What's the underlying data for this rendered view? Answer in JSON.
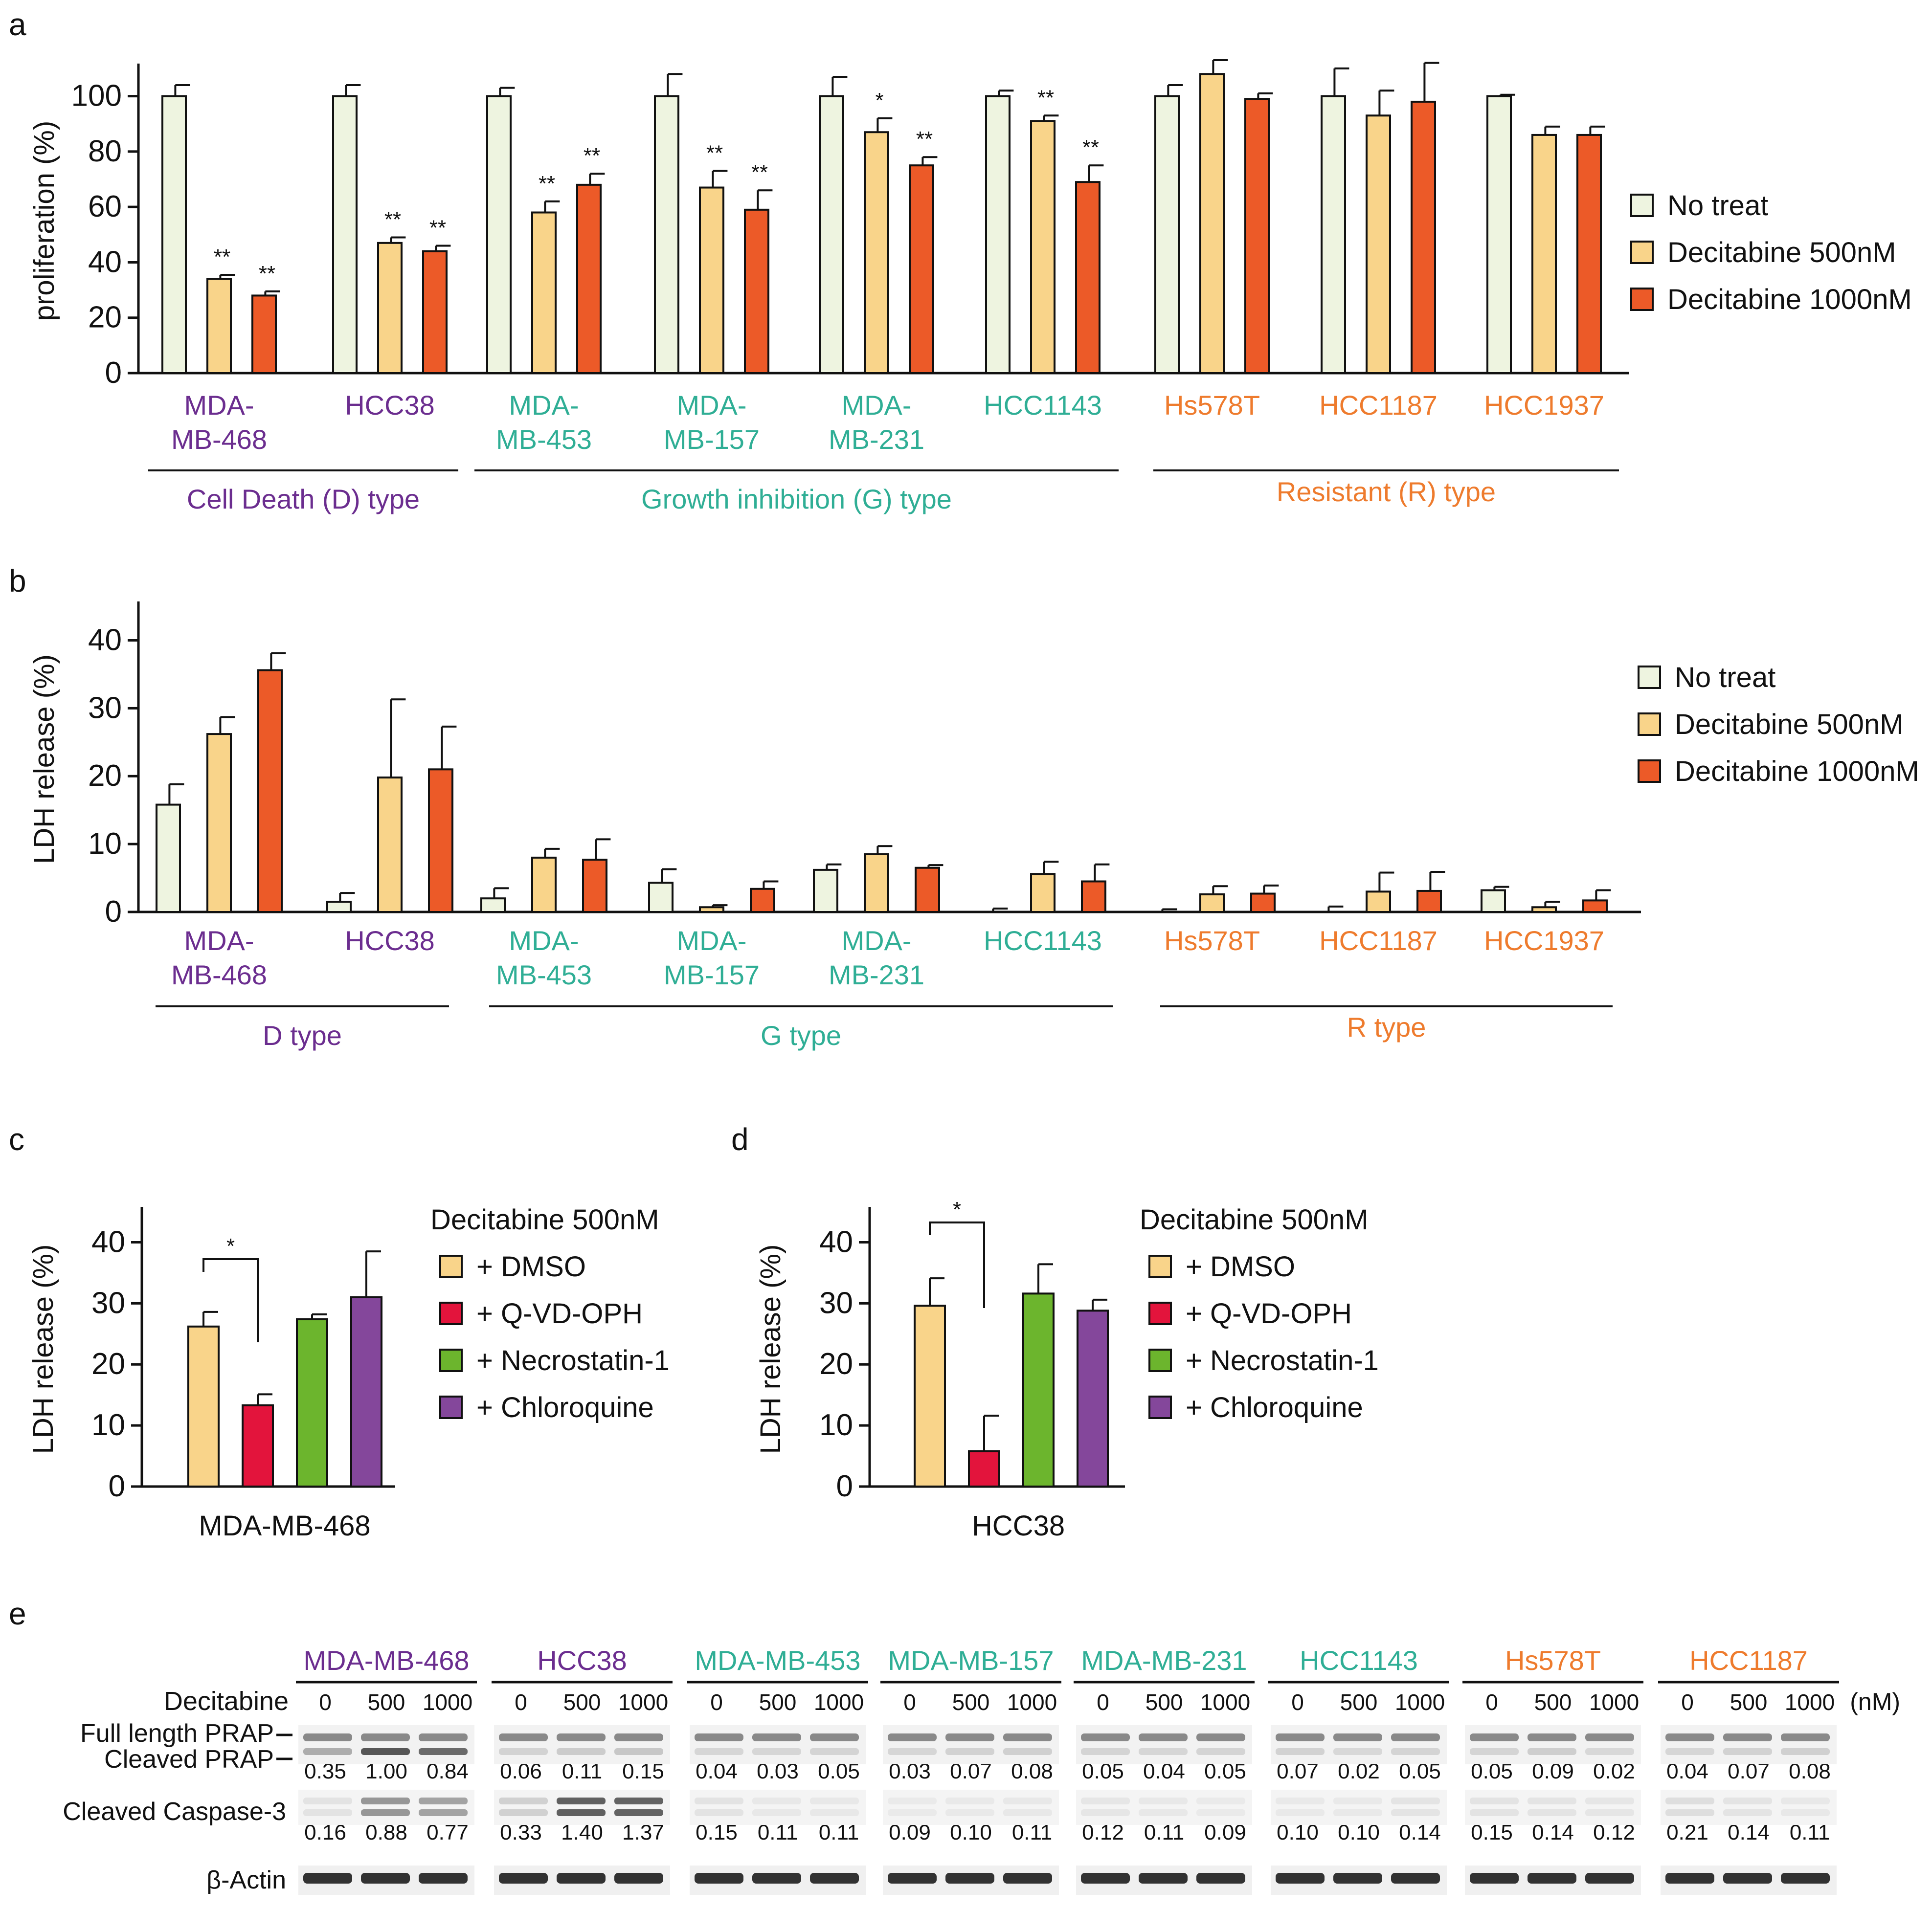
{
  "colors": {
    "no_treat": "#eef4e0",
    "dec500": "#f9d48a",
    "dec1000": "#ec5a28",
    "dmso": "#f9d48a",
    "qvd": "#e3143c",
    "nec": "#6cb52d",
    "chl": "#84479b",
    "D": "#6b2d8f",
    "G": "#2fae95",
    "R": "#ee7b2d",
    "blot_band": "#333333"
  },
  "panels": {
    "a": "a",
    "b": "b",
    "c": "c",
    "d": "d",
    "e": "e"
  },
  "chart_data": [
    {
      "id": "a",
      "type": "bar",
      "ylabel": "proliferation (%)",
      "ylim": [
        0,
        110
      ],
      "yticks": [
        0,
        20,
        40,
        60,
        80,
        100
      ],
      "categories": [
        "MDA-MB-468",
        "HCC38",
        "MDA-MB-453",
        "MDA-MB-157",
        "MDA-MB-231",
        "HCC1143",
        "Hs578T",
        "HCC1187",
        "HCC1937"
      ],
      "category_labels": [
        [
          "MDA-",
          "MB-468"
        ],
        [
          "HCC38"
        ],
        [
          "MDA-",
          "MB-453"
        ],
        [
          "MDA-",
          "MB-157"
        ],
        [
          "MDA-",
          "MB-231"
        ],
        [
          "HCC1143"
        ],
        [
          "Hs578T"
        ],
        [
          "HCC1187"
        ],
        [
          "HCC1937"
        ]
      ],
      "category_group": [
        "D",
        "D",
        "G",
        "G",
        "G",
        "G",
        "R",
        "R",
        "R"
      ],
      "series": [
        {
          "name": "No treat",
          "color_key": "no_treat",
          "values": [
            100,
            100,
            100,
            100,
            100,
            100,
            100,
            100,
            100
          ],
          "errors": [
            4,
            4,
            3,
            8,
            7,
            2,
            4,
            10,
            0.5
          ]
        },
        {
          "name": "Decitabine 500nM",
          "color_key": "dec500",
          "values": [
            34,
            47,
            58,
            67,
            87,
            91,
            108,
            93,
            86
          ],
          "errors": [
            1.5,
            2,
            4,
            6,
            5,
            2,
            5,
            9,
            3
          ]
        },
        {
          "name": "Decitabine 1000nM",
          "color_key": "dec1000",
          "values": [
            28,
            44,
            68,
            59,
            75,
            69,
            99,
            98,
            86
          ],
          "errors": [
            1.5,
            2,
            4,
            7,
            3,
            6,
            2,
            14,
            3
          ]
        }
      ],
      "significance": [
        [
          "",
          "**",
          "**"
        ],
        [
          "",
          "**",
          "**"
        ],
        [
          "",
          "**",
          "**"
        ],
        [
          "",
          "**",
          "**"
        ],
        [
          "",
          "*",
          "**"
        ],
        [
          "",
          "**",
          "**"
        ],
        [
          "",
          "",
          ""
        ],
        [
          "",
          "",
          ""
        ],
        [
          "",
          "",
          ""
        ]
      ],
      "groups": [
        {
          "key": "D",
          "label": "Cell Death (D) type",
          "from": 0,
          "to": 1
        },
        {
          "key": "G",
          "label": "Growth inhibition (G) type",
          "from": 2,
          "to": 5
        },
        {
          "key": "R",
          "label": "Resistant (R) type",
          "from": 6,
          "to": 8
        }
      ],
      "legend_position": "right"
    },
    {
      "id": "b",
      "type": "bar",
      "ylabel": "LDH release (%)",
      "ylim": [
        0,
        45
      ],
      "yticks": [
        0,
        10,
        20,
        30,
        40
      ],
      "categories": [
        "MDA-MB-468",
        "HCC38",
        "MDA-MB-453",
        "MDA-MB-157",
        "MDA-MB-231",
        "HCC1143",
        "Hs578T",
        "HCC1187",
        "HCC1937"
      ],
      "category_labels": [
        [
          "MDA-",
          "MB-468"
        ],
        [
          "HCC38"
        ],
        [
          "MDA-",
          "MB-453"
        ],
        [
          "MDA-",
          "MB-157"
        ],
        [
          "MDA-",
          "MB-231"
        ],
        [
          "HCC1143"
        ],
        [
          "Hs578T"
        ],
        [
          "HCC1187"
        ],
        [
          "HCC1937"
        ]
      ],
      "category_group": [
        "D",
        "D",
        "G",
        "G",
        "G",
        "G",
        "R",
        "R",
        "R"
      ],
      "series": [
        {
          "name": "No treat",
          "color_key": "no_treat",
          "values": [
            15.8,
            1.5,
            2,
            4.3,
            6.2,
            0,
            0,
            0,
            3.2
          ],
          "errors": [
            3,
            1.3,
            1.5,
            2,
            0.8,
            0.5,
            0.4,
            0.8,
            0.5
          ]
        },
        {
          "name": "Decitabine 500nM",
          "color_key": "dec500",
          "values": [
            26.2,
            19.8,
            8,
            0.7,
            8.5,
            5.6,
            2.6,
            3,
            0.7
          ],
          "errors": [
            2.5,
            11.5,
            1.3,
            0.3,
            1.2,
            1.8,
            1.2,
            2.8,
            0.8
          ]
        },
        {
          "name": "Decitabine 1000nM",
          "color_key": "dec1000",
          "values": [
            35.6,
            21,
            7.7,
            3.4,
            6.5,
            4.5,
            2.7,
            3.1,
            1.7
          ],
          "errors": [
            2.5,
            6.3,
            3,
            1.1,
            0.4,
            2.5,
            1.2,
            2.8,
            1.5
          ]
        }
      ],
      "groups": [
        {
          "key": "D",
          "label": "D type",
          "from": 0,
          "to": 1
        },
        {
          "key": "G",
          "label": "G type",
          "from": 2,
          "to": 5
        },
        {
          "key": "R",
          "label": "R type",
          "from": 6,
          "to": 8
        }
      ],
      "legend_position": "right"
    },
    {
      "id": "c",
      "type": "bar",
      "ylabel": "LDH release (%)",
      "xlabel": "MDA-MB-468",
      "ylim": [
        0,
        45
      ],
      "yticks": [
        0,
        10,
        20,
        30,
        40
      ],
      "legend_title": "Decitabine 500nM",
      "bars": [
        {
          "name": "+ DMSO",
          "color_key": "dmso",
          "value": 26.2,
          "error": 2.4
        },
        {
          "name": "+ Q-VD-OPH",
          "color_key": "qvd",
          "value": 13.3,
          "error": 1.8
        },
        {
          "name": "+ Necrostatin-1",
          "color_key": "nec",
          "value": 27.4,
          "error": 0.8
        },
        {
          "name": "+ Chloroquine",
          "color_key": "chl",
          "value": 31,
          "error": 7.5
        }
      ],
      "significance": {
        "from": 0,
        "to": 1,
        "label": "*"
      }
    },
    {
      "id": "d",
      "type": "bar",
      "ylabel": "LDH release (%)",
      "xlabel": "HCC38",
      "ylim": [
        0,
        45
      ],
      "yticks": [
        0,
        10,
        20,
        30,
        40
      ],
      "legend_title": "Decitabine 500nM",
      "bars": [
        {
          "name": "+ DMSO",
          "color_key": "dmso",
          "value": 29.6,
          "error": 4.5
        },
        {
          "name": "+ Q-VD-OPH",
          "color_key": "qvd",
          "value": 5.8,
          "error": 5.8
        },
        {
          "name": "+ Necrostatin-1",
          "color_key": "nec",
          "value": 31.6,
          "error": 4.8
        },
        {
          "name": "+ Chloroquine",
          "color_key": "chl",
          "value": 28.8,
          "error": 1.8
        }
      ],
      "significance": {
        "from": 0,
        "to": 1,
        "label": "*"
      }
    }
  ],
  "blot": {
    "decitabine_label": "Decitabine",
    "unit": "(nM)",
    "doses": [
      "0",
      "500",
      "1000"
    ],
    "row_labels": {
      "full": "Full length PRAP",
      "cleaved": "Cleaved PRAP",
      "caspase": "Cleaved Caspase-3",
      "actin": "β-Actin"
    },
    "cell_lines": [
      {
        "name": "MDA-MB-468",
        "group": "D",
        "parp": [
          "0.35",
          "1.00",
          "0.84"
        ],
        "casp": [
          "0.16",
          "0.88",
          "0.77"
        ]
      },
      {
        "name": "HCC38",
        "group": "D",
        "parp": [
          "0.06",
          "0.11",
          "0.15"
        ],
        "casp": [
          "0.33",
          "1.40",
          "1.37"
        ]
      },
      {
        "name": "MDA-MB-453",
        "group": "G",
        "parp": [
          "0.04",
          "0.03",
          "0.05"
        ],
        "casp": [
          "0.15",
          "0.11",
          "0.11"
        ]
      },
      {
        "name": "MDA-MB-157",
        "group": "G",
        "parp": [
          "0.03",
          "0.07",
          "0.08"
        ],
        "casp": [
          "0.09",
          "0.10",
          "0.11"
        ]
      },
      {
        "name": "MDA-MB-231",
        "group": "G",
        "parp": [
          "0.05",
          "0.04",
          "0.05"
        ],
        "casp": [
          "0.12",
          "0.11",
          "0.09"
        ]
      },
      {
        "name": "HCC1143",
        "group": "G",
        "parp": [
          "0.07",
          "0.02",
          "0.05"
        ],
        "casp": [
          "0.10",
          "0.10",
          "0.14"
        ]
      },
      {
        "name": "Hs578T",
        "group": "R",
        "parp": [
          "0.05",
          "0.09",
          "0.02"
        ],
        "casp": [
          "0.15",
          "0.14",
          "0.12"
        ]
      },
      {
        "name": "HCC1187",
        "group": "R",
        "parp": [
          "0.04",
          "0.07",
          "0.08"
        ],
        "casp": [
          "0.21",
          "0.14",
          "0.11"
        ]
      }
    ]
  }
}
